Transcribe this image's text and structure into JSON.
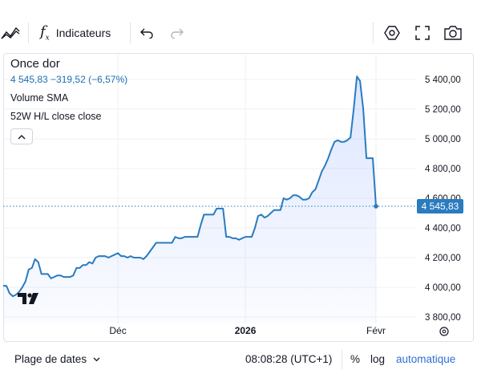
{
  "toolbar": {
    "indicators_label": "Indicateurs",
    "icons": [
      "chart-style-icon",
      "function-icon",
      "undo-icon",
      "redo-icon",
      "settings-icon",
      "fullscreen-icon",
      "camera-icon"
    ]
  },
  "legend": {
    "title": "Once dor",
    "quote": "4 545,83  −319,52  (−6,57%)",
    "indicator_1": "Volume SMA",
    "indicator_2": "52W H/L close close"
  },
  "price_tag": "4 545,83",
  "bottom": {
    "range_label": "Plage de dates",
    "time": "08:08:28 (UTC+1)",
    "percent": "%",
    "log": "log",
    "auto": "automatique"
  },
  "colors": {
    "line": "#2a7bbf",
    "tag": "#2a7bbf",
    "grid": "#eef0f4",
    "accent": "#2f6fd6"
  },
  "chart_data": {
    "type": "area",
    "y_ticks": [
      "5 400,00",
      "5 200,00",
      "5 000,00",
      "4 800,00",
      "4 600,00",
      "4 400,00",
      "4 200,00",
      "4 000,00",
      "3 800,00"
    ],
    "y_tick_values": [
      5400,
      5200,
      5000,
      4800,
      4600,
      4400,
      4200,
      4000,
      3800
    ],
    "x_ticks": [
      {
        "label": "Déc",
        "i": 36,
        "bold": false
      },
      {
        "label": "2026",
        "i": 76,
        "bold": true
      },
      {
        "label": "Févr",
        "i": 117,
        "bold": false
      }
    ],
    "ylim": [
      3780,
      5480
    ],
    "last_value": 4545.83,
    "values": [
      4010,
      4010,
      3960,
      3940,
      3950,
      3970,
      4000,
      4040,
      4120,
      4130,
      4190,
      4170,
      4090,
      4090,
      4090,
      4060,
      4070,
      4080,
      4080,
      4070,
      4070,
      4070,
      4080,
      4130,
      4130,
      4150,
      4150,
      4170,
      4160,
      4200,
      4210,
      4210,
      4210,
      4200,
      4210,
      4220,
      4230,
      4210,
      4210,
      4200,
      4210,
      4200,
      4200,
      4200,
      4190,
      4210,
      4240,
      4270,
      4300,
      4300,
      4300,
      4300,
      4300,
      4300,
      4340,
      4330,
      4330,
      4340,
      4340,
      4340,
      4340,
      4340,
      4420,
      4490,
      4490,
      4490,
      4490,
      4530,
      4530,
      4530,
      4340,
      4340,
      4330,
      4330,
      4320,
      4330,
      4340,
      4340,
      4340,
      4400,
      4480,
      4490,
      4470,
      4480,
      4500,
      4520,
      4520,
      4520,
      4600,
      4590,
      4600,
      4620,
      4620,
      4610,
      4590,
      4590,
      4600,
      4640,
      4660,
      4720,
      4780,
      4820,
      4870,
      4930,
      4980,
      4990,
      4980,
      4980,
      4990,
      5010,
      5200,
      5420,
      5390,
      5200,
      4870,
      4870,
      4870,
      4545.83
    ]
  }
}
